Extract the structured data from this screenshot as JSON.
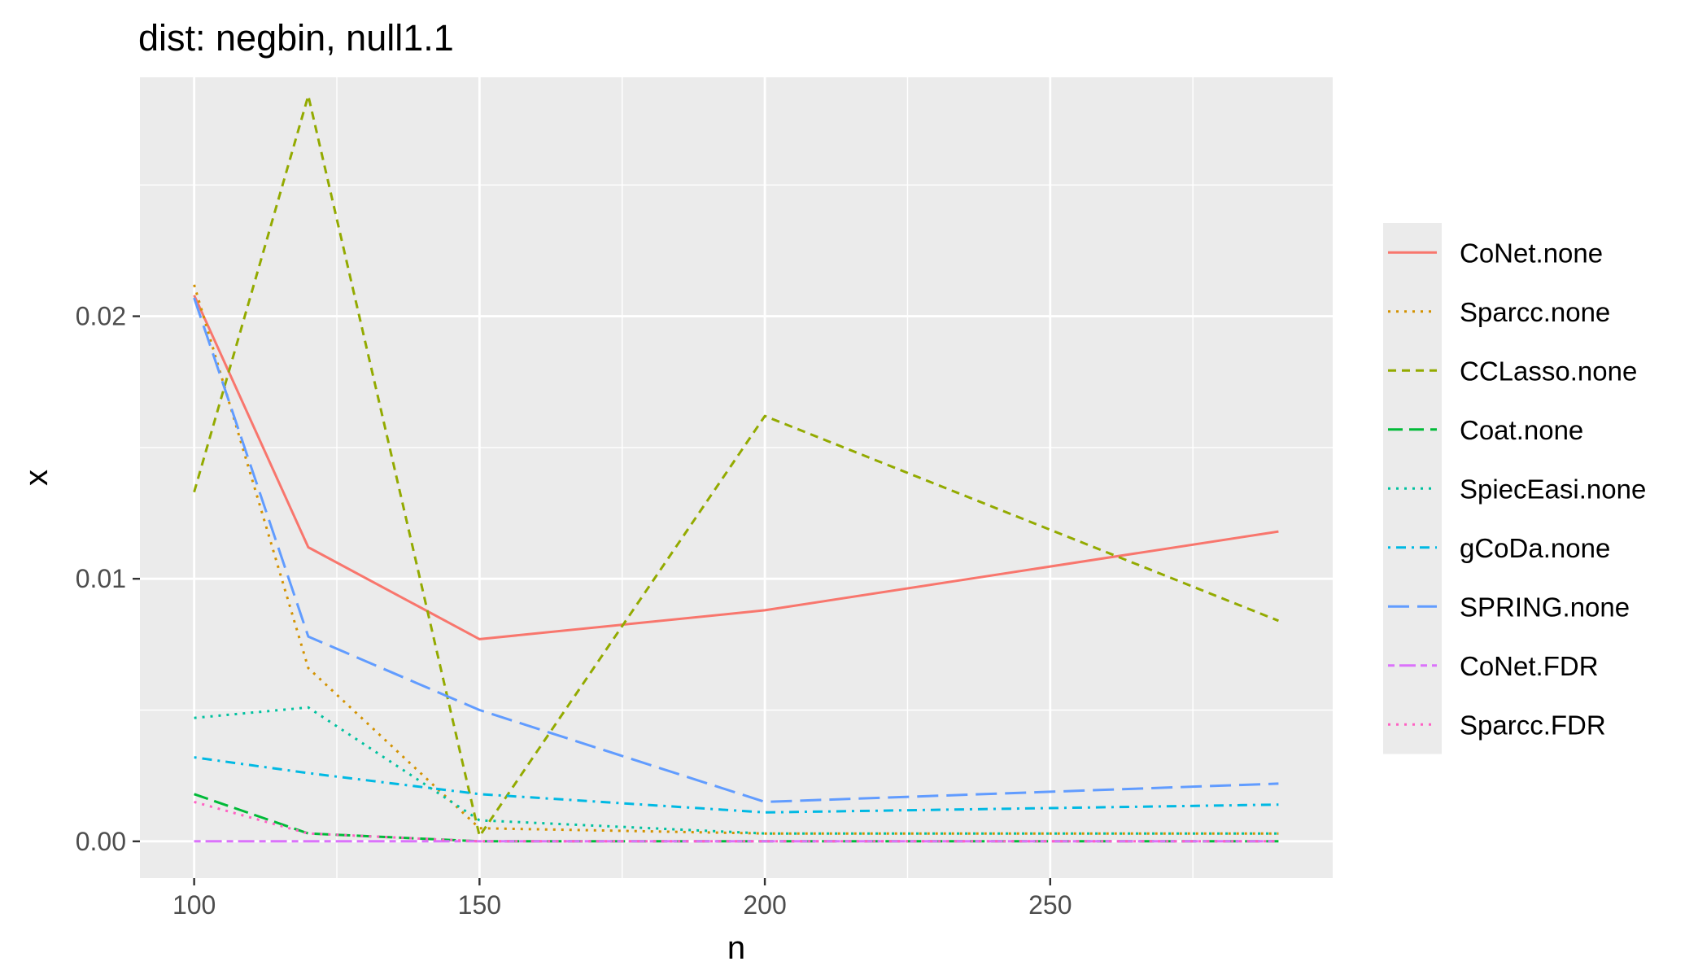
{
  "chart_data": {
    "type": "line",
    "title": "dist: negbin, null1.1",
    "xlabel": "n",
    "ylabel": "x",
    "x": [
      100,
      120,
      150,
      200,
      290
    ],
    "xlim": [
      90.5,
      299.5
    ],
    "ylim": [
      -0.0014,
      0.0291
    ],
    "x_ticks": [
      100,
      150,
      200,
      250
    ],
    "x_tick_labels": [
      "100",
      "150",
      "200",
      "250"
    ],
    "y_ticks": [
      0,
      0.01,
      0.02
    ],
    "y_tick_labels": [
      "0.00",
      "0.01",
      "0.02"
    ],
    "x_minor_ticks": [
      125,
      175,
      225,
      275
    ],
    "y_minor_ticks": [
      0.005,
      0.015,
      0.025
    ],
    "grid": true,
    "legend_position": "right",
    "series": [
      {
        "name": "CoNet.none",
        "color": "#F8766D",
        "dash": "solid",
        "values": [
          0.0208,
          0.0112,
          0.0077,
          0.0088,
          0.0118
        ]
      },
      {
        "name": "Sparcc.none",
        "color": "#D39200",
        "dash": "dotted",
        "values": [
          0.0212,
          0.0066,
          0.0005,
          0.0003,
          0.0003
        ]
      },
      {
        "name": "CCLasso.none",
        "color": "#93AA00",
        "dash": "dashed",
        "values": [
          0.0133,
          0.0284,
          0.0002,
          0.0162,
          0.0084
        ]
      },
      {
        "name": "Coat.none",
        "color": "#00BA38",
        "dash": "longdash",
        "values": [
          0.0018,
          0.0003,
          0.0,
          0.0,
          0.0
        ]
      },
      {
        "name": "SpiecEasi.none",
        "color": "#00C19F",
        "dash": "dotted",
        "values": [
          0.0047,
          0.0051,
          0.0008,
          0.0003,
          0.0003
        ]
      },
      {
        "name": "gCoDa.none",
        "color": "#00B9E3",
        "dash": "dotdash",
        "values": [
          0.0032,
          0.0026,
          0.0018,
          0.0011,
          0.0014
        ]
      },
      {
        "name": "SPRING.none",
        "color": "#619CFF",
        "dash": "longdash2",
        "values": [
          0.0207,
          0.0078,
          0.005,
          0.0015,
          0.0022
        ]
      },
      {
        "name": "CoNet.FDR",
        "color": "#DB72FB",
        "dash": "twodash",
        "values": [
          0.0,
          0.0,
          0.0,
          0.0,
          0.0
        ]
      },
      {
        "name": "Sparcc.FDR",
        "color": "#FF61C3",
        "dash": "dotted",
        "values": [
          0.0015,
          0.0003,
          0.0,
          0.0,
          0.0
        ]
      }
    ]
  }
}
